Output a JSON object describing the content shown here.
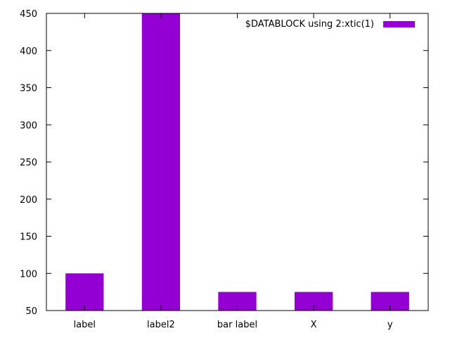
{
  "chart_data": {
    "type": "bar",
    "categories": [
      "label",
      "label2",
      "bar label",
      "X",
      "y"
    ],
    "series": [
      {
        "name": "$DATABLOCK using 2:xtic(1)",
        "values": [
          100,
          450,
          75,
          75,
          75
        ],
        "color": "#9400d3"
      }
    ],
    "ylim": [
      50,
      450
    ],
    "yticks": [
      50,
      100,
      150,
      200,
      250,
      300,
      350,
      400,
      450
    ],
    "legend_position": "top-right",
    "grid": false
  }
}
